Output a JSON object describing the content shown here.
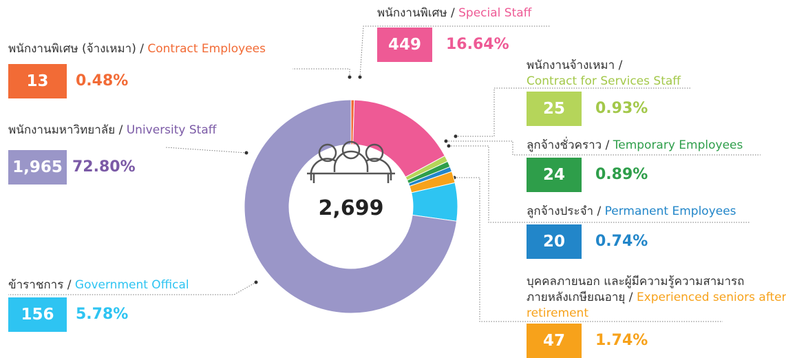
{
  "chart_data": {
    "type": "pie",
    "total": 2699,
    "total_label": "2,699",
    "labels_th": [
      "พนักงานพิเศษ (จ้างเหมา) /",
      "พนักงานพิเศษ /",
      "พนักงานจ้างเหมา /",
      "ลูกจ้างชั่วคราว /",
      "ลูกจ้างประจำ /",
      "บุคคลภายนอก และผู้มีความรู้ความสามารถ\nภายหลังเกษียณอายุ /",
      "ข้าราชการ /",
      "พนักงานมหาวิทยาลัย /"
    ],
    "categories": [
      "Contract Employees",
      "Special Staff",
      "Contract for Services Staff",
      "Temporary Employees",
      "Permanent Employees",
      "Experienced seniors after retirement",
      "Government Offical",
      "University Staff"
    ],
    "values": [
      13,
      449,
      25,
      24,
      20,
      47,
      156,
      1965
    ],
    "value_labels": [
      "13",
      "449",
      "25",
      "24",
      "20",
      "47",
      "156",
      "1,965"
    ],
    "percentages": [
      0.48,
      16.64,
      0.93,
      0.89,
      0.74,
      1.74,
      5.78,
      72.8
    ],
    "percentage_labels": [
      "0.48%",
      "16.64%",
      "0.93%",
      "0.89%",
      "0.74%",
      "1.74%",
      "5.78%",
      "72.80%"
    ],
    "colors": [
      "#f26b36",
      "#ee5a95",
      "#b5d55a",
      "#2e9e4a",
      "#2286c9",
      "#f7a21b",
      "#2ec4f2",
      "#9a96c8"
    ],
    "text_colors": [
      "#f26b36",
      "#ee5a95",
      "#a3c84a",
      "#2e9e4a",
      "#2286c9",
      "#f7a21b",
      "#2ec4f2",
      "#7b5aa6"
    ]
  }
}
